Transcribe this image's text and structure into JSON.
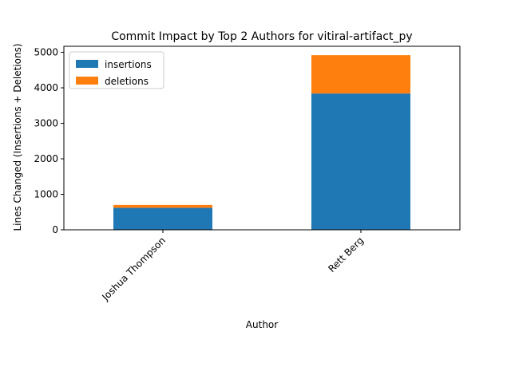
{
  "chart_data": {
    "type": "bar",
    "stacked": true,
    "title": "Commit Impact by Top 2 Authors for vitiral-artifact_py",
    "xlabel": "Author",
    "ylabel": "Lines Changed (Insertions + Deletions)",
    "categories": [
      "Joshua Thompson",
      "Rett Berg"
    ],
    "series": [
      {
        "name": "insertions",
        "values": [
          620,
          3840
        ],
        "color": "#1f77b4"
      },
      {
        "name": "deletions",
        "values": [
          80,
          1080
        ],
        "color": "#ff7f0e"
      }
    ],
    "ylim": [
      0,
      5170
    ],
    "yticks": [
      0,
      1000,
      2000,
      3000,
      4000,
      5000
    ],
    "grid": false,
    "legend_position": "top-left"
  }
}
